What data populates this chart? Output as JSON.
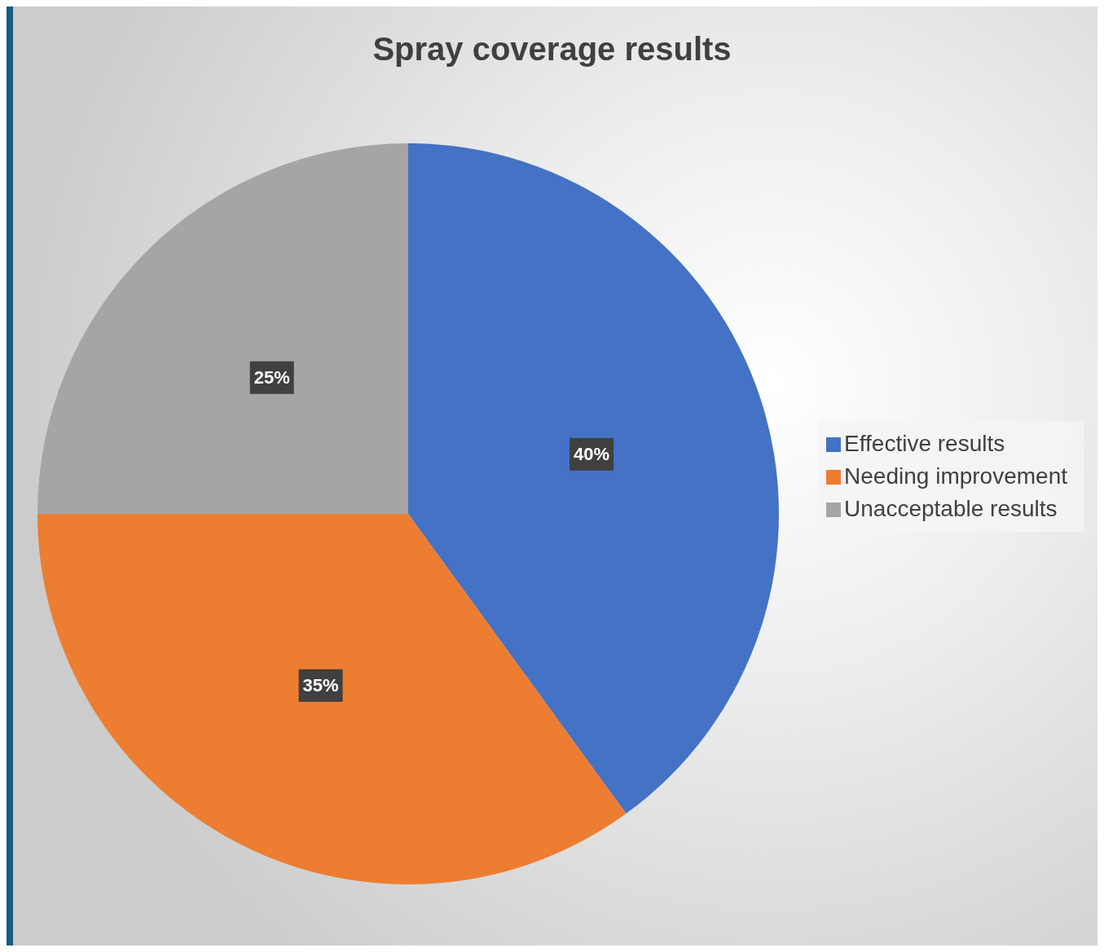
{
  "chart_data": {
    "type": "pie",
    "title": "Spray coverage results",
    "categories": [
      "Effective results",
      "Needing improvement",
      "Unacceptable results"
    ],
    "values": [
      40,
      35,
      25
    ],
    "colors": [
      "#4472c4",
      "#ed7d31",
      "#a5a5a5"
    ],
    "value_labels": [
      "40%",
      "35%",
      "25%"
    ],
    "legend": "right"
  }
}
